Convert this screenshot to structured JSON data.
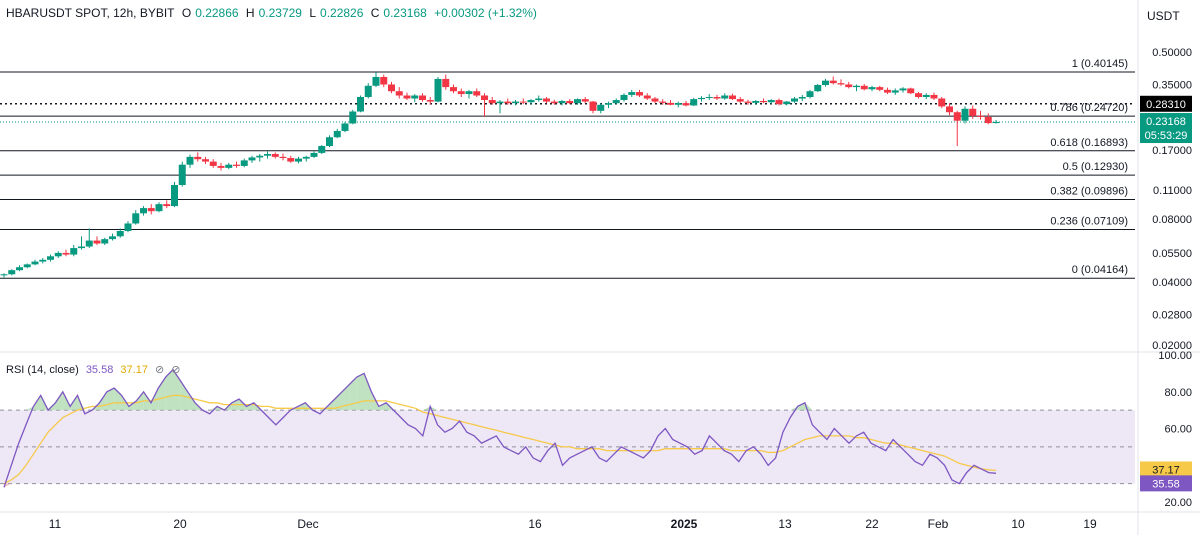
{
  "header": {
    "symbol": "HBARUSDT SPOT, 12h, BYBIT",
    "open_label": "O",
    "open": "0.22866",
    "high_label": "H",
    "high": "0.23729",
    "low_label": "L",
    "low": "0.22826",
    "close_label": "C",
    "close": "0.23168",
    "change": "+0.00302 (+1.32%)"
  },
  "currency": "USDT",
  "colors": {
    "up": "#089981",
    "down": "#f23645",
    "rsi_line": "#7e57c2",
    "rsi_ma": "#f7c948",
    "rsi_band": "#ede7f6",
    "price_tag": "#089981",
    "level_tag": "#000000"
  },
  "chart_data": [
    {
      "type": "candlestick",
      "title": "",
      "y_scale": "log",
      "y_ticks": [
        "0.50000",
        "0.35000",
        "0.28310",
        "0.23168",
        "0.17000",
        "0.11000",
        "0.08000",
        "0.05500",
        "0.04000",
        "0.02800",
        "0.02000"
      ],
      "x_ticks": [
        "11",
        "20",
        "Dec",
        "16",
        "2025",
        "13",
        "22",
        "Feb",
        "10",
        "19"
      ],
      "fib_levels": [
        {
          "ratio": "1",
          "price": "0.40145",
          "label": "1 (0.40145)"
        },
        {
          "ratio": "0.786",
          "price": "0.24720",
          "label": "0.786 (0.24720)"
        },
        {
          "ratio": "0.618",
          "price": "0.16893",
          "label": "0.618 (0.16893)"
        },
        {
          "ratio": "0.5",
          "price": "0.12930",
          "label": "0.5 (0.12930)"
        },
        {
          "ratio": "0.382",
          "price": "0.09896",
          "label": "0.382 (0.09896)"
        },
        {
          "ratio": "0.236",
          "price": "0.07109",
          "label": "0.236 (0.07109)"
        },
        {
          "ratio": "0",
          "price": "0.04164",
          "label": "0 (0.04164)"
        }
      ],
      "horizontal_marker": {
        "price": "0.28310",
        "style": "dotted"
      },
      "last_price": {
        "price": "0.23168",
        "countdown": "05:53:29"
      },
      "x_range": [
        "Nov 6",
        "Feb 22"
      ],
      "candles_12h": [
        [
          0.043,
          0.044,
          0.042,
          0.0435
        ],
        [
          0.0435,
          0.046,
          0.043,
          0.0455
        ],
        [
          0.0455,
          0.048,
          0.045,
          0.047
        ],
        [
          0.047,
          0.049,
          0.0465,
          0.0485
        ],
        [
          0.0485,
          0.051,
          0.048,
          0.05
        ],
        [
          0.05,
          0.052,
          0.049,
          0.051
        ],
        [
          0.051,
          0.054,
          0.05,
          0.053
        ],
        [
          0.053,
          0.056,
          0.052,
          0.055
        ],
        [
          0.055,
          0.057,
          0.053,
          0.054
        ],
        [
          0.054,
          0.06,
          0.053,
          0.058
        ],
        [
          0.058,
          0.066,
          0.057,
          0.059
        ],
        [
          0.059,
          0.072,
          0.058,
          0.063
        ],
        [
          0.063,
          0.066,
          0.06,
          0.061
        ],
        [
          0.061,
          0.065,
          0.06,
          0.064
        ],
        [
          0.064,
          0.068,
          0.063,
          0.066
        ],
        [
          0.066,
          0.072,
          0.065,
          0.07
        ],
        [
          0.07,
          0.078,
          0.069,
          0.076
        ],
        [
          0.076,
          0.088,
          0.075,
          0.085
        ],
        [
          0.085,
          0.092,
          0.083,
          0.09
        ],
        [
          0.09,
          0.094,
          0.084,
          0.087
        ],
        [
          0.087,
          0.096,
          0.086,
          0.094
        ],
        [
          0.094,
          0.098,
          0.09,
          0.092
        ],
        [
          0.092,
          0.12,
          0.091,
          0.116
        ],
        [
          0.116,
          0.15,
          0.114,
          0.145
        ],
        [
          0.145,
          0.162,
          0.14,
          0.158
        ],
        [
          0.158,
          0.166,
          0.15,
          0.154
        ],
        [
          0.154,
          0.158,
          0.146,
          0.15
        ],
        [
          0.15,
          0.154,
          0.14,
          0.143
        ],
        [
          0.143,
          0.148,
          0.136,
          0.14
        ],
        [
          0.14,
          0.148,
          0.138,
          0.145
        ],
        [
          0.145,
          0.15,
          0.14,
          0.143
        ],
        [
          0.143,
          0.155,
          0.141,
          0.152
        ],
        [
          0.152,
          0.16,
          0.148,
          0.157
        ],
        [
          0.157,
          0.163,
          0.15,
          0.16
        ],
        [
          0.16,
          0.168,
          0.155,
          0.163
        ],
        [
          0.163,
          0.166,
          0.155,
          0.158
        ],
        [
          0.158,
          0.164,
          0.152,
          0.156
        ],
        [
          0.156,
          0.16,
          0.148,
          0.15
        ],
        [
          0.15,
          0.158,
          0.147,
          0.155
        ],
        [
          0.155,
          0.16,
          0.15,
          0.158
        ],
        [
          0.158,
          0.168,
          0.156,
          0.165
        ],
        [
          0.165,
          0.18,
          0.163,
          0.178
        ],
        [
          0.178,
          0.2,
          0.176,
          0.196
        ],
        [
          0.196,
          0.215,
          0.194,
          0.21
        ],
        [
          0.21,
          0.232,
          0.207,
          0.228
        ],
        [
          0.228,
          0.265,
          0.226,
          0.26
        ],
        [
          0.26,
          0.31,
          0.258,
          0.305
        ],
        [
          0.305,
          0.355,
          0.3,
          0.345
        ],
        [
          0.345,
          0.4,
          0.34,
          0.38
        ],
        [
          0.38,
          0.39,
          0.34,
          0.35
        ],
        [
          0.35,
          0.36,
          0.318,
          0.325
        ],
        [
          0.325,
          0.34,
          0.3,
          0.31
        ],
        [
          0.31,
          0.32,
          0.295,
          0.3
        ],
        [
          0.3,
          0.315,
          0.288,
          0.31
        ],
        [
          0.31,
          0.318,
          0.29,
          0.295
        ],
        [
          0.295,
          0.305,
          0.28,
          0.29
        ],
        [
          0.29,
          0.38,
          0.288,
          0.372
        ],
        [
          0.372,
          0.39,
          0.33,
          0.34
        ],
        [
          0.34,
          0.35,
          0.318,
          0.325
        ],
        [
          0.325,
          0.335,
          0.305,
          0.315
        ],
        [
          0.315,
          0.33,
          0.3,
          0.325
        ],
        [
          0.325,
          0.335,
          0.305,
          0.31
        ],
        [
          0.31,
          0.318,
          0.245,
          0.295
        ],
        [
          0.295,
          0.305,
          0.28,
          0.285
        ],
        [
          0.285,
          0.295,
          0.255,
          0.29
        ],
        [
          0.29,
          0.3,
          0.28,
          0.285
        ],
        [
          0.285,
          0.295,
          0.278,
          0.29
        ],
        [
          0.29,
          0.3,
          0.282,
          0.288
        ],
        [
          0.288,
          0.298,
          0.28,
          0.295
        ],
        [
          0.295,
          0.31,
          0.29,
          0.3
        ],
        [
          0.3,
          0.305,
          0.285,
          0.29
        ],
        [
          0.29,
          0.296,
          0.28,
          0.285
        ],
        [
          0.285,
          0.295,
          0.278,
          0.292
        ],
        [
          0.292,
          0.298,
          0.282,
          0.285
        ],
        [
          0.285,
          0.3,
          0.28,
          0.298
        ],
        [
          0.298,
          0.305,
          0.285,
          0.29
        ],
        [
          0.29,
          0.292,
          0.255,
          0.262
        ],
        [
          0.262,
          0.285,
          0.255,
          0.28
        ],
        [
          0.28,
          0.29,
          0.27,
          0.285
        ],
        [
          0.285,
          0.3,
          0.282,
          0.295
        ],
        [
          0.295,
          0.318,
          0.29,
          0.312
        ],
        [
          0.312,
          0.33,
          0.305,
          0.322
        ],
        [
          0.322,
          0.33,
          0.305,
          0.31
        ],
        [
          0.31,
          0.318,
          0.295,
          0.3
        ],
        [
          0.3,
          0.305,
          0.285,
          0.29
        ],
        [
          0.29,
          0.298,
          0.28,
          0.286
        ],
        [
          0.286,
          0.295,
          0.278,
          0.28
        ],
        [
          0.28,
          0.29,
          0.272,
          0.285
        ],
        [
          0.285,
          0.292,
          0.275,
          0.278
        ],
        [
          0.278,
          0.302,
          0.276,
          0.298
        ],
        [
          0.298,
          0.308,
          0.29,
          0.302
        ],
        [
          0.302,
          0.315,
          0.295,
          0.305
        ],
        [
          0.305,
          0.312,
          0.295,
          0.3
        ],
        [
          0.3,
          0.318,
          0.296,
          0.31
        ],
        [
          0.31,
          0.316,
          0.295,
          0.298
        ],
        [
          0.298,
          0.305,
          0.285,
          0.29
        ],
        [
          0.29,
          0.296,
          0.28,
          0.286
        ],
        [
          0.286,
          0.295,
          0.28,
          0.292
        ],
        [
          0.292,
          0.3,
          0.285,
          0.288
        ],
        [
          0.288,
          0.298,
          0.282,
          0.295
        ],
        [
          0.295,
          0.3,
          0.278,
          0.282
        ],
        [
          0.282,
          0.292,
          0.278,
          0.29
        ],
        [
          0.29,
          0.305,
          0.286,
          0.3
        ],
        [
          0.3,
          0.312,
          0.292,
          0.305
        ],
        [
          0.305,
          0.33,
          0.3,
          0.325
        ],
        [
          0.325,
          0.352,
          0.322,
          0.348
        ],
        [
          0.348,
          0.372,
          0.342,
          0.365
        ],
        [
          0.365,
          0.382,
          0.35,
          0.355
        ],
        [
          0.355,
          0.37,
          0.345,
          0.35
        ],
        [
          0.35,
          0.36,
          0.335,
          0.34
        ],
        [
          0.34,
          0.35,
          0.325,
          0.345
        ],
        [
          0.345,
          0.352,
          0.328,
          0.332
        ],
        [
          0.332,
          0.345,
          0.325,
          0.34
        ],
        [
          0.34,
          0.345,
          0.325,
          0.33
        ],
        [
          0.33,
          0.338,
          0.315,
          0.32
        ],
        [
          0.32,
          0.335,
          0.312,
          0.328
        ],
        [
          0.328,
          0.34,
          0.32,
          0.335
        ],
        [
          0.335,
          0.338,
          0.315,
          0.318
        ],
        [
          0.318,
          0.322,
          0.3,
          0.305
        ],
        [
          0.305,
          0.318,
          0.298,
          0.312
        ],
        [
          0.312,
          0.32,
          0.295,
          0.3
        ],
        [
          0.3,
          0.305,
          0.27,
          0.275
        ],
        [
          0.275,
          0.285,
          0.25,
          0.258
        ],
        [
          0.258,
          0.262,
          0.178,
          0.235
        ],
        [
          0.235,
          0.275,
          0.228,
          0.268
        ],
        [
          0.268,
          0.278,
          0.24,
          0.248
        ],
        [
          0.248,
          0.262,
          0.238,
          0.245
        ],
        [
          0.245,
          0.255,
          0.226,
          0.229
        ],
        [
          0.229,
          0.237,
          0.228,
          0.2317
        ]
      ]
    },
    {
      "type": "line",
      "title": "RSI",
      "legend_label": "RSI (14, close)",
      "rsi_value": "35.58",
      "ma_value": "37.17",
      "y_ticks": [
        "100.00",
        "80.00",
        "60.00",
        "40.00",
        "20.00"
      ],
      "bands": [
        70,
        50,
        30
      ],
      "ylim": [
        20,
        100
      ],
      "series": [
        {
          "values": [
            28,
            40,
            52,
            62,
            72,
            78,
            70,
            74,
            80,
            72,
            78,
            68,
            70,
            74,
            80,
            82,
            78,
            72,
            75,
            80,
            74,
            82,
            88,
            92,
            86,
            80,
            74,
            70,
            68,
            72,
            70,
            74,
            76,
            72,
            74,
            70,
            66,
            62,
            66,
            70,
            72,
            74,
            70,
            68,
            72,
            76,
            80,
            84,
            88,
            90,
            80,
            72,
            74,
            70,
            66,
            62,
            60,
            56,
            72,
            62,
            58,
            60,
            64,
            58,
            56,
            52,
            54,
            56,
            50,
            48,
            46,
            50,
            44,
            42,
            48,
            52,
            40,
            44,
            46,
            48,
            50,
            44,
            42,
            46,
            50,
            48,
            46,
            44,
            48,
            56,
            60,
            54,
            52,
            50,
            46,
            48,
            56,
            52,
            48,
            46,
            42,
            48,
            50,
            46,
            40,
            44,
            58,
            66,
            72,
            74,
            62,
            58,
            54,
            60,
            56,
            52,
            56,
            58,
            52,
            50,
            48,
            54,
            50,
            46,
            42,
            40,
            46,
            44,
            40,
            32,
            30,
            36,
            40,
            38,
            36,
            35.6
          ]
        },
        {
          "values": [
            30,
            32,
            35,
            40,
            46,
            52,
            58,
            62,
            66,
            68,
            70,
            71,
            72,
            72,
            73,
            74,
            74,
            74,
            74,
            75,
            75,
            76,
            77,
            78,
            78,
            77,
            76,
            75,
            74,
            74,
            73,
            73,
            73,
            73,
            73,
            72,
            72,
            71,
            71,
            71,
            71,
            71,
            71,
            71,
            71,
            71,
            72,
            73,
            74,
            75,
            75,
            75,
            75,
            74,
            73,
            72,
            71,
            69,
            68,
            67,
            66,
            65,
            64,
            63,
            62,
            61,
            60,
            59,
            58,
            57,
            56,
            55,
            54,
            53,
            52,
            51,
            50,
            50,
            49,
            49,
            49,
            49,
            48,
            48,
            48,
            48,
            48,
            48,
            48,
            48,
            49,
            49,
            49,
            49,
            49,
            49,
            49,
            49,
            49,
            48,
            48,
            48,
            48,
            48,
            47,
            47,
            48,
            50,
            52,
            54,
            55,
            56,
            56,
            56,
            56,
            56,
            55,
            55,
            54,
            53,
            52,
            52,
            51,
            50,
            49,
            48,
            47,
            46,
            45,
            43,
            41,
            40,
            39,
            38,
            37.5,
            37.2
          ]
        }
      ]
    }
  ]
}
